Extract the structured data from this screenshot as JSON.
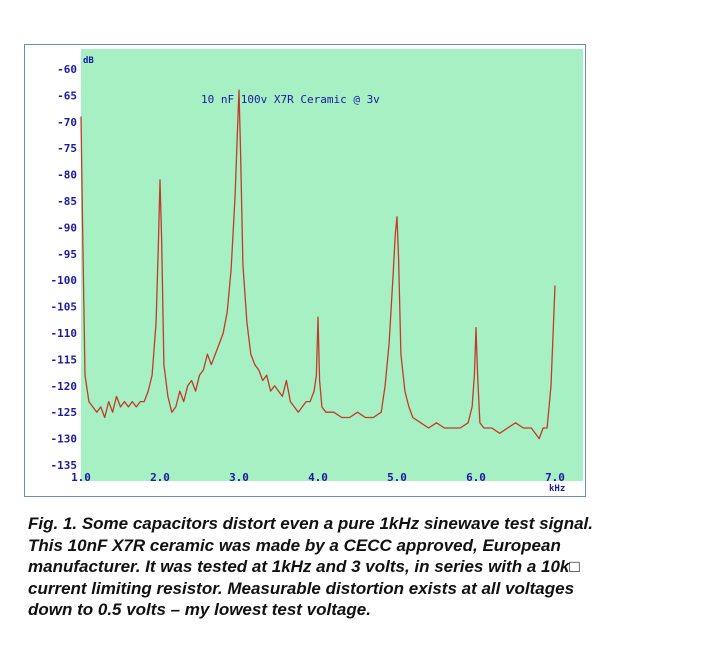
{
  "chart_data": {
    "type": "line",
    "annotation": "10 nF 100v X7R Ceramic @ 3v",
    "y_unit": "dB",
    "x_unit": "kHz",
    "xlim": [
      1.0,
      7.0
    ],
    "ylim": [
      -135,
      -60
    ],
    "y_ticks": [
      "-60",
      "-65",
      "-70",
      "-75",
      "-80",
      "-85",
      "-90",
      "-95",
      "-100",
      "-105",
      "-110",
      "-115",
      "-120",
      "-125",
      "-130",
      "-135"
    ],
    "x_ticks": [
      "1.0",
      "2.0",
      "3.0",
      "4.0",
      "5.0",
      "6.0",
      "7.0"
    ],
    "grid": false,
    "colors": {
      "plot_background": "#a6f0c4",
      "trace": "#c23a2a",
      "axis_text": "#1a1aa0"
    },
    "series": [
      {
        "x": [
          1.0,
          1.02,
          1.05,
          1.1,
          1.15,
          1.2,
          1.25,
          1.3,
          1.35,
          1.4,
          1.45,
          1.5,
          1.55,
          1.6,
          1.65,
          1.7,
          1.75,
          1.8,
          1.85,
          1.9,
          1.95,
          1.98,
          2.0,
          2.02,
          2.05,
          2.1,
          2.15,
          2.2,
          2.25,
          2.3,
          2.35,
          2.4,
          2.45,
          2.5,
          2.55,
          2.6,
          2.65,
          2.7,
          2.75,
          2.8,
          2.85,
          2.9,
          2.95,
          2.98,
          3.0,
          3.02,
          3.05,
          3.1,
          3.15,
          3.2,
          3.25,
          3.3,
          3.35,
          3.4,
          3.45,
          3.5,
          3.55,
          3.6,
          3.65,
          3.7,
          3.75,
          3.8,
          3.85,
          3.9,
          3.95,
          3.98,
          4.0,
          4.02,
          4.05,
          4.1,
          4.2,
          4.3,
          4.4,
          4.5,
          4.6,
          4.7,
          4.8,
          4.85,
          4.9,
          4.95,
          4.98,
          5.0,
          5.02,
          5.05,
          5.1,
          5.15,
          5.2,
          5.3,
          5.4,
          5.5,
          5.6,
          5.7,
          5.8,
          5.9,
          5.95,
          5.98,
          6.0,
          6.02,
          6.05,
          6.1,
          6.2,
          6.3,
          6.4,
          6.5,
          6.6,
          6.7,
          6.8,
          6.85,
          6.9,
          6.95,
          7.0
        ],
        "y": [
          -69,
          -90,
          -118,
          -123,
          -124,
          -125,
          -124,
          -126,
          -123,
          -125,
          -122,
          -124,
          -123,
          -124,
          -123,
          -124,
          -123,
          -123,
          -121,
          -118,
          -108,
          -93,
          -81,
          -92,
          -116,
          -122,
          -125,
          -124,
          -121,
          -123,
          -120,
          -119,
          -121,
          -118,
          -117,
          -114,
          -116,
          -114,
          -112,
          -110,
          -106,
          -98,
          -84,
          -72,
          -64,
          -76,
          -97,
          -108,
          -114,
          -116,
          -117,
          -119,
          -118,
          -121,
          -120,
          -121,
          -122,
          -119,
          -123,
          -124,
          -125,
          -124,
          -123,
          -123,
          -121,
          -118,
          -107,
          -119,
          -124,
          -125,
          -125,
          -126,
          -126,
          -125,
          -126,
          -126,
          -125,
          -120,
          -112,
          -99,
          -91,
          -88,
          -96,
          -114,
          -121,
          -124,
          -126,
          -127,
          -128,
          -127,
          -128,
          -128,
          -128,
          -127,
          -124,
          -118,
          -109,
          -118,
          -127,
          -128,
          -128,
          -129,
          -128,
          -127,
          -128,
          -128,
          -130,
          -128,
          -128,
          -120,
          -101
        ]
      }
    ]
  },
  "caption_lines": [
    "Fig. 1. Some capacitors distort even a pure 1kHz sinewave test signal.",
    "This 10nF X7R ceramic was made by a CECC approved, European",
    "manufacturer. It was tested at 1kHz and 3 volts, in series with a 10k□",
    "current limiting resistor. Measurable distortion exists at all voltages",
    "down to 0.5 volts – my lowest test voltage."
  ]
}
